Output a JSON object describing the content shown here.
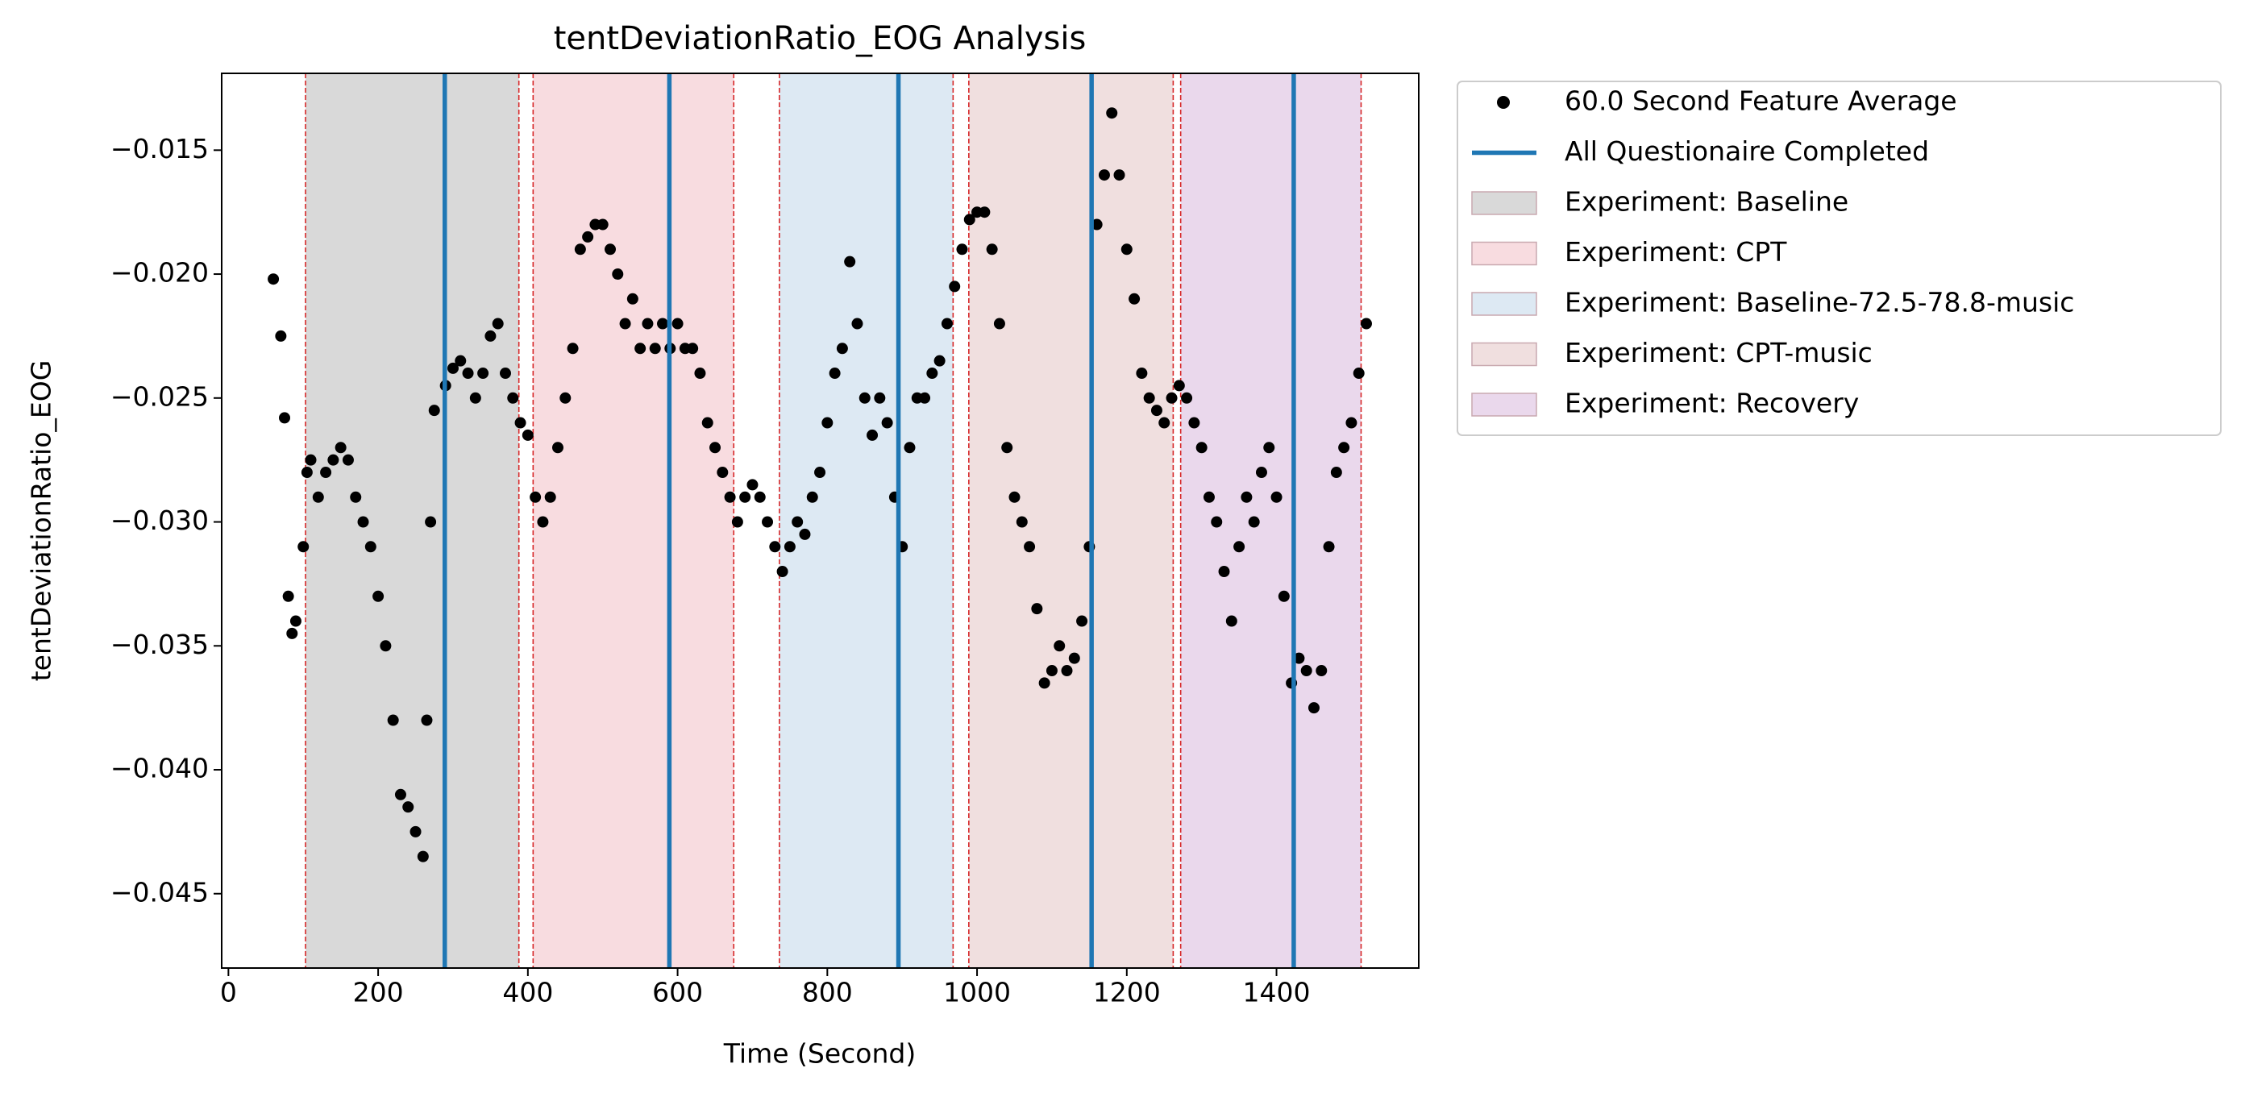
{
  "chart_data": {
    "type": "scatter",
    "title": "tentDeviationRatio_EOG Analysis",
    "xlabel": "Time (Second)",
    "ylabel": "tentDeviationRatio_EOG",
    "xlim": [
      -9,
      1590
    ],
    "ylim": [
      -0.048,
      -0.0119
    ],
    "xticks": [
      0,
      200,
      400,
      600,
      800,
      1000,
      1200,
      1400
    ],
    "yticks": [
      {
        "value": -0.015,
        "label": "−0.015"
      },
      {
        "value": -0.02,
        "label": "−0.020"
      },
      {
        "value": -0.025,
        "label": "−0.025"
      },
      {
        "value": -0.03,
        "label": "−0.030"
      },
      {
        "value": -0.035,
        "label": "−0.035"
      },
      {
        "value": -0.04,
        "label": "−0.040"
      },
      {
        "value": -0.045,
        "label": "−0.045"
      }
    ],
    "regions": [
      {
        "name": "Experiment: Baseline",
        "color": "#d9d9d9",
        "start": 103,
        "end": 388
      },
      {
        "name": "Experiment: CPT",
        "color": "#f8dce0",
        "start": 407,
        "end": 675
      },
      {
        "name": "Experiment: Baseline-72.5-78.8-music",
        "color": "#dde9f3",
        "start": 736,
        "end": 968
      },
      {
        "name": "Experiment: CPT-music",
        "color": "#f0dfdf",
        "start": 989,
        "end": 1262
      },
      {
        "name": "Experiment: Recovery",
        "color": "#ead8ec",
        "start": 1272,
        "end": 1513
      }
    ],
    "region_edge_color": "#d62728",
    "vlines": {
      "name": "All Questionaire Completed",
      "color": "#1f77b4",
      "x": [
        289,
        589,
        895,
        1153,
        1423
      ]
    },
    "series": [
      {
        "name": "60.0 Second Feature Average",
        "color": "#000000",
        "x": [
          60,
          70,
          75,
          80,
          85,
          90,
          100,
          105,
          110,
          120,
          130,
          140,
          150,
          160,
          170,
          180,
          190,
          200,
          210,
          220,
          230,
          240,
          250,
          260,
          265,
          270,
          275,
          290,
          300,
          310,
          320,
          330,
          340,
          350,
          360,
          370,
          380,
          390,
          400,
          410,
          420,
          430,
          440,
          450,
          460,
          470,
          480,
          490,
          500,
          510,
          520,
          530,
          540,
          550,
          560,
          570,
          580,
          590,
          600,
          610,
          620,
          630,
          640,
          650,
          660,
          670,
          680,
          690,
          700,
          710,
          720,
          730,
          740,
          750,
          760,
          770,
          780,
          790,
          800,
          810,
          820,
          830,
          840,
          850,
          860,
          870,
          880,
          890,
          900,
          910,
          920,
          930,
          940,
          950,
          960,
          970,
          980,
          990,
          1000,
          1010,
          1020,
          1030,
          1040,
          1050,
          1060,
          1070,
          1080,
          1090,
          1100,
          1110,
          1120,
          1130,
          1140,
          1150,
          1160,
          1170,
          1180,
          1190,
          1200,
          1210,
          1220,
          1230,
          1240,
          1250,
          1260,
          1270,
          1280,
          1290,
          1300,
          1310,
          1320,
          1330,
          1340,
          1350,
          1360,
          1370,
          1380,
          1390,
          1400,
          1410,
          1420,
          1430,
          1440,
          1450,
          1460,
          1470,
          1480,
          1490,
          1500,
          1510,
          1520
        ],
        "values": [
          -0.0202,
          -0.0225,
          -0.0258,
          -0.033,
          -0.0345,
          -0.034,
          -0.031,
          -0.028,
          -0.0275,
          -0.029,
          -0.028,
          -0.0275,
          -0.027,
          -0.0275,
          -0.029,
          -0.03,
          -0.031,
          -0.033,
          -0.035,
          -0.038,
          -0.041,
          -0.0415,
          -0.0425,
          -0.0435,
          -0.038,
          -0.03,
          -0.0255,
          -0.0245,
          -0.0238,
          -0.0235,
          -0.024,
          -0.025,
          -0.024,
          -0.0225,
          -0.022,
          -0.024,
          -0.025,
          -0.026,
          -0.0265,
          -0.029,
          -0.03,
          -0.029,
          -0.027,
          -0.025,
          -0.023,
          -0.019,
          -0.0185,
          -0.018,
          -0.018,
          -0.019,
          -0.02,
          -0.022,
          -0.021,
          -0.023,
          -0.022,
          -0.023,
          -0.022,
          -0.023,
          -0.022,
          -0.023,
          -0.023,
          -0.024,
          -0.026,
          -0.027,
          -0.028,
          -0.029,
          -0.03,
          -0.029,
          -0.0285,
          -0.029,
          -0.03,
          -0.031,
          -0.032,
          -0.031,
          -0.03,
          -0.0305,
          -0.029,
          -0.028,
          -0.026,
          -0.024,
          -0.023,
          -0.0195,
          -0.022,
          -0.025,
          -0.0265,
          -0.025,
          -0.026,
          -0.029,
          -0.031,
          -0.027,
          -0.025,
          -0.025,
          -0.024,
          -0.0235,
          -0.022,
          -0.0205,
          -0.019,
          -0.0178,
          -0.0175,
          -0.0175,
          -0.019,
          -0.022,
          -0.027,
          -0.029,
          -0.03,
          -0.031,
          -0.0335,
          -0.0365,
          -0.036,
          -0.035,
          -0.036,
          -0.0355,
          -0.034,
          -0.031,
          -0.018,
          -0.016,
          -0.0135,
          -0.016,
          -0.019,
          -0.021,
          -0.024,
          -0.025,
          -0.0255,
          -0.026,
          -0.025,
          -0.0245,
          -0.025,
          -0.026,
          -0.027,
          -0.029,
          -0.03,
          -0.032,
          -0.034,
          -0.031,
          -0.029,
          -0.03,
          -0.028,
          -0.027,
          -0.029,
          -0.033,
          -0.0365,
          -0.0355,
          -0.036,
          -0.0375,
          -0.036,
          -0.031,
          -0.028,
          -0.027,
          -0.026,
          -0.024,
          -0.022
        ]
      }
    ]
  }
}
